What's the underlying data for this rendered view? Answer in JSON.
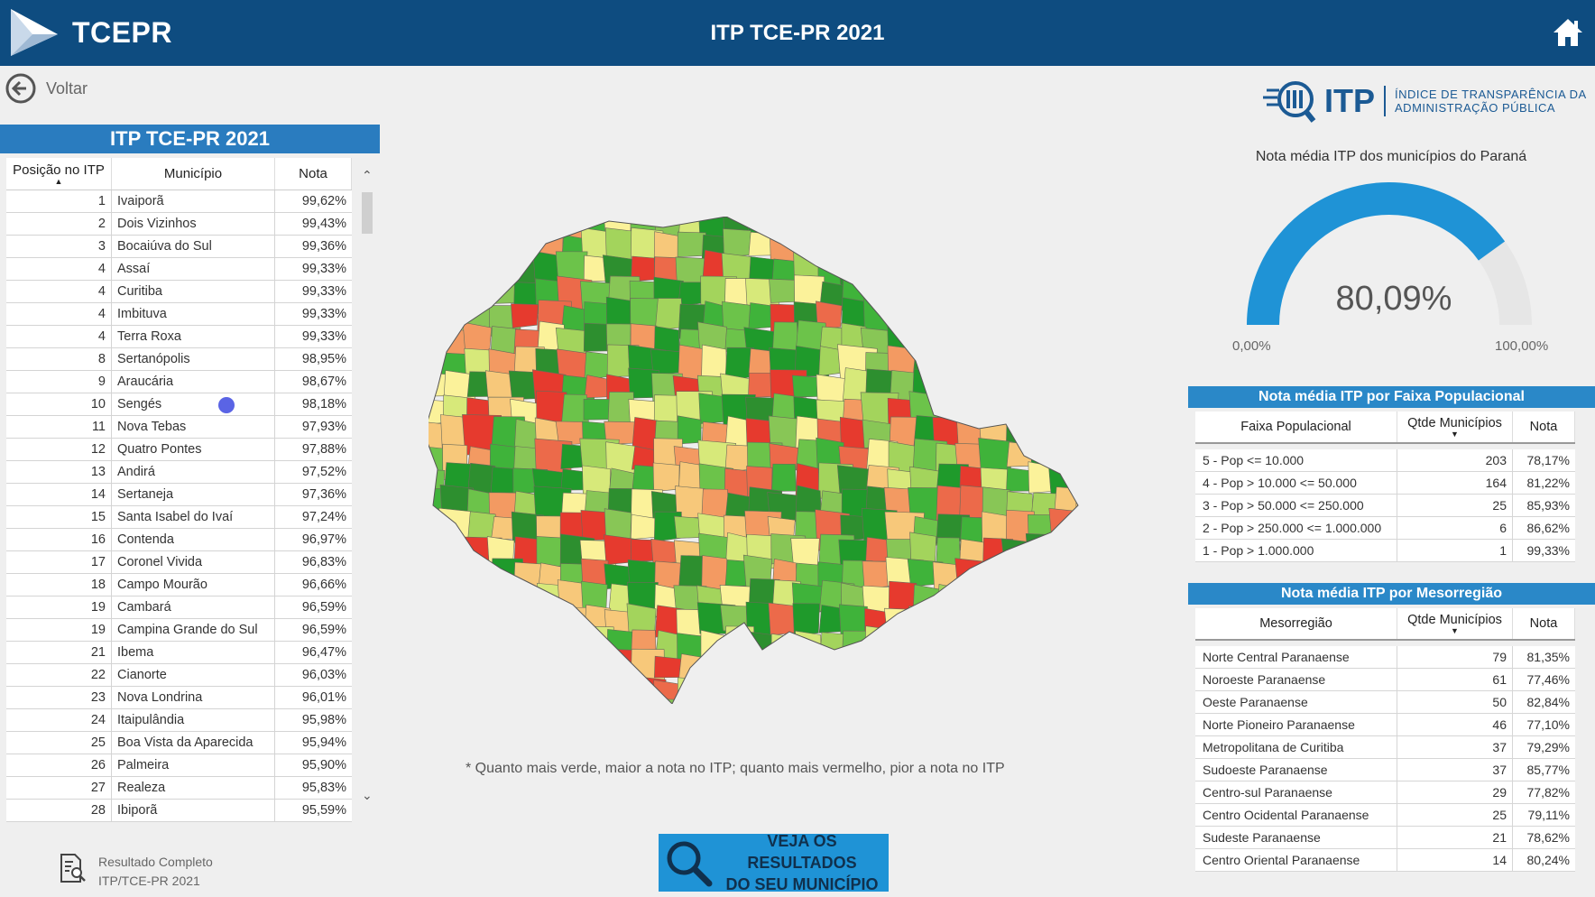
{
  "header": {
    "brand": "TCEPR",
    "title": "ITP TCE-PR 2021"
  },
  "nav": {
    "back_label": "Voltar"
  },
  "ranking": {
    "title": "ITP TCE-PR 2021",
    "columns": [
      "Posição no ITP",
      "Município",
      "Nota"
    ],
    "rows": [
      [
        "1",
        "Ivaiporã",
        "99,62%"
      ],
      [
        "2",
        "Dois Vizinhos",
        "99,43%"
      ],
      [
        "3",
        "Bocaiúva do Sul",
        "99,36%"
      ],
      [
        "4",
        "Assaí",
        "99,33%"
      ],
      [
        "4",
        "Curitiba",
        "99,33%"
      ],
      [
        "4",
        "Imbituva",
        "99,33%"
      ],
      [
        "4",
        "Terra Roxa",
        "99,33%"
      ],
      [
        "8",
        "Sertanópolis",
        "98,95%"
      ],
      [
        "9",
        "Araucária",
        "98,67%"
      ],
      [
        "10",
        "Sengés",
        "98,18%"
      ],
      [
        "11",
        "Nova Tebas",
        "97,93%"
      ],
      [
        "12",
        "Quatro Pontes",
        "97,88%"
      ],
      [
        "13",
        "Andirá",
        "97,52%"
      ],
      [
        "14",
        "Sertaneja",
        "97,36%"
      ],
      [
        "15",
        "Santa Isabel do Ivaí",
        "97,24%"
      ],
      [
        "16",
        "Contenda",
        "96,97%"
      ],
      [
        "17",
        "Coronel Vivida",
        "96,83%"
      ],
      [
        "18",
        "Campo Mourão",
        "96,66%"
      ],
      [
        "19",
        "Cambará",
        "96,59%"
      ],
      [
        "19",
        "Campina Grande do Sul",
        "96,59%"
      ],
      [
        "21",
        "Ibema",
        "96,47%"
      ],
      [
        "22",
        "Cianorte",
        "96,03%"
      ],
      [
        "23",
        "Nova Londrina",
        "96,01%"
      ],
      [
        "24",
        "Itaipulândia",
        "95,98%"
      ],
      [
        "25",
        "Boa Vista da Aparecida",
        "95,94%"
      ],
      [
        "26",
        "Palmeira",
        "95,90%"
      ],
      [
        "27",
        "Realeza",
        "95,83%"
      ],
      [
        "28",
        "Ibiporã",
        "95,59%"
      ]
    ]
  },
  "full_result": {
    "line1": "Resultado Completo",
    "line2": "ITP/TCE-PR 2021"
  },
  "map": {
    "note": "* Quanto mais verde, maior a nota no ITP; quanto mais vermelho, pior a nota no ITP"
  },
  "cta": {
    "line1": "VEJA OS RESULTADOS",
    "line2": "DO SEU MUNICÍPIO"
  },
  "itp_logo": {
    "acronym": "ITP",
    "line1": "ÍNDICE DE TRANSPARÊNCIA DA",
    "line2": "ADMINISTRAÇÃO PÚBLICA"
  },
  "gauge": {
    "title": "Nota média ITP dos municípios do Paraná",
    "value_label": "80,09%",
    "value": 0.8009,
    "min_label": "0,00%",
    "max_label": "100,00%",
    "color": "#1f93d6"
  },
  "faixa": {
    "title": "Nota média ITP por Faixa Populacional",
    "columns": [
      "Faixa Populacional",
      "Qtde Municípios",
      "Nota"
    ],
    "rows": [
      [
        "5 - Pop <= 10.000",
        "203",
        "78,17%"
      ],
      [
        "4 - Pop > 10.000 <= 50.000",
        "164",
        "81,22%"
      ],
      [
        "3 - Pop > 50.000 <= 250.000",
        "25",
        "85,93%"
      ],
      [
        "2 - Pop > 250.000 <= 1.000.000",
        "6",
        "86,62%"
      ],
      [
        "1 - Pop > 1.000.000",
        "1",
        "99,33%"
      ]
    ]
  },
  "meso": {
    "title": "Nota média ITP por Mesorregião",
    "columns": [
      "Mesorregião",
      "Qtde Municípios",
      "Nota"
    ],
    "rows": [
      [
        "Norte Central Paranaense",
        "79",
        "81,35%"
      ],
      [
        "Noroeste Paranaense",
        "61",
        "77,46%"
      ],
      [
        "Oeste Paranaense",
        "50",
        "82,84%"
      ],
      [
        "Norte Pioneiro Paranaense",
        "46",
        "77,10%"
      ],
      [
        "Metropolitana de Curitiba",
        "37",
        "79,29%"
      ],
      [
        "Sudoeste Paranaense",
        "37",
        "85,77%"
      ],
      [
        "Centro-sul Paranaense",
        "29",
        "77,82%"
      ],
      [
        "Centro Ocidental Paranaense",
        "25",
        "79,11%"
      ],
      [
        "Sudeste Paranaense",
        "21",
        "78,62%"
      ],
      [
        "Centro Oriental Paranaense",
        "14",
        "80,24%"
      ]
    ]
  },
  "colors": {
    "header_bg": "#0e4c80",
    "accent": "#2a7cbf",
    "map_high": "#1a9e2a",
    "map_low": "#e8372c"
  }
}
